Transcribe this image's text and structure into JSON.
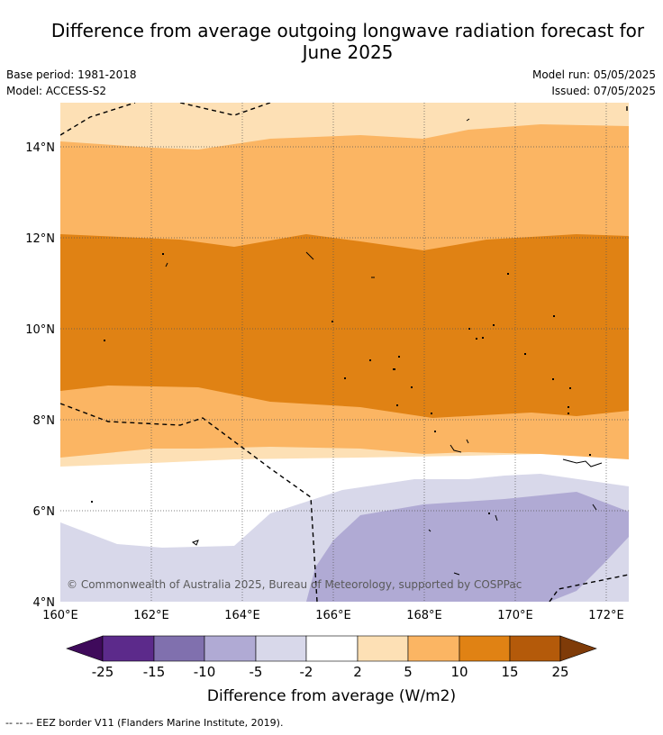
{
  "header": {
    "title_line1": "Difference from average outgoing longwave radiation forecast for",
    "title_line2": "June 2025",
    "base_period": "Base period: 1981-2018",
    "model": "Model: ACCESS-S2",
    "model_run": "Model run: 05/05/2025",
    "issued": "Issued: 07/05/2025"
  },
  "map": {
    "lon_labels": [
      "160°E",
      "162°E",
      "164°E",
      "166°E",
      "168°E",
      "170°E",
      "172°E"
    ],
    "lat_labels": [
      "14°N",
      "12°N",
      "10°N",
      "8°N",
      "6°N",
      "4°N"
    ],
    "copyright": "© Commonwealth of Australia 2025, Bureau of Meteorology, supported by COSPPac"
  },
  "colorbar": {
    "ticks": [
      "-25",
      "-15",
      "-10",
      "-5",
      "-2",
      "2",
      "5",
      "10",
      "15",
      "25"
    ],
    "label": "Difference from average (W/m2)",
    "colors": {
      "below_-25": "#3f0a5b",
      "-25_-15": "#5c2a8b",
      "-15_-10": "#8070ae",
      "-10_-5": "#b0aad4",
      "-5_-2": "#d8d8ea",
      "-2_2": "#ffffff",
      "2_5": "#fde0b5",
      "5_10": "#fbb563",
      "10_15": "#e08214",
      "15_25": "#b45a0a",
      "above_25": "#7f3b08"
    }
  },
  "legend": {
    "eez_border": "-- -- -- EEZ border V11 (Flanders Marine Institute, 2019)."
  }
}
